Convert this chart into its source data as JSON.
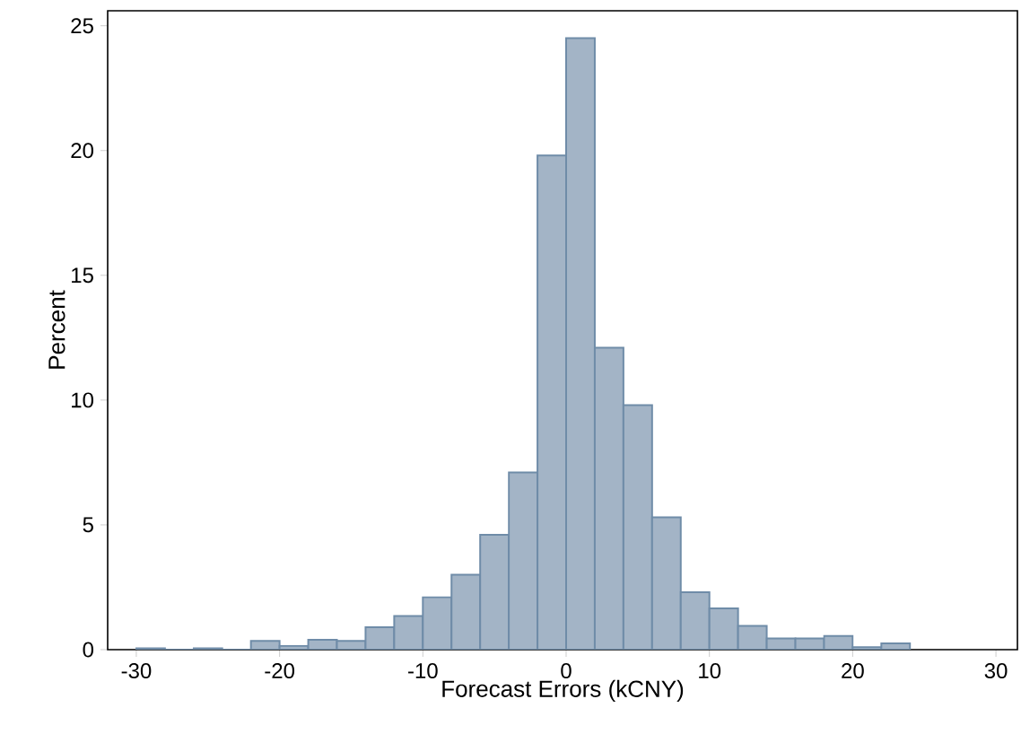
{
  "chart_data": {
    "type": "histogram",
    "xlabel": "Forecast Errors (kCNY)",
    "ylabel": "Percent",
    "bins": [
      -30,
      -28,
      -26,
      -24,
      -22,
      -20,
      -18,
      -16,
      -14,
      -12,
      -10,
      -8,
      -6,
      -4,
      -2,
      0,
      2,
      4,
      6,
      8,
      10,
      12,
      14,
      16,
      18,
      20,
      22,
      24
    ],
    "values": [
      0.05,
      0,
      0.05,
      0,
      0.35,
      0.15,
      0.4,
      0.35,
      0.9,
      1.35,
      2.1,
      3.0,
      4.6,
      7.1,
      19.8,
      24.5,
      12.1,
      9.8,
      5.3,
      2.3,
      1.65,
      0.95,
      0.45,
      0.45,
      0.55,
      0.1,
      0.25
    ],
    "color": "#a3b4c6",
    "xlim": [
      -32,
      31.5
    ],
    "ylim": [
      0,
      25.6
    ],
    "xticks": [
      -30,
      -20,
      -10,
      0,
      10,
      20,
      30
    ],
    "yticks": [
      0,
      5,
      10,
      15,
      20,
      25
    ],
    "grid": false
  }
}
